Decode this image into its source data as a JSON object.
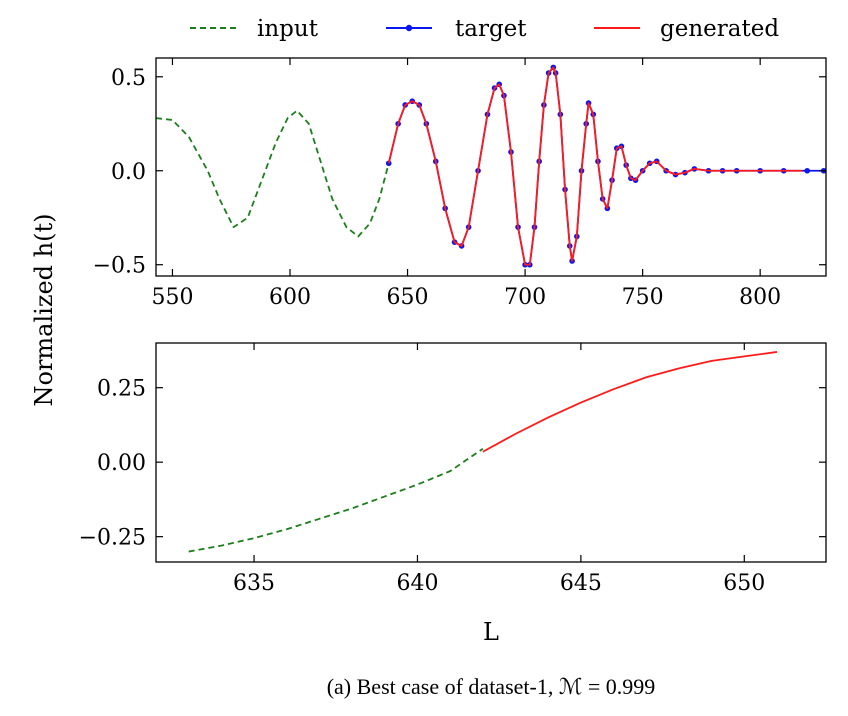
{
  "caption": "(a) Best case of dataset-1, ℳ = 0.999",
  "shared_ylabel": "Normalized h(t)",
  "colors": {
    "input": "#1a7f1a",
    "target": "#0b16f0",
    "generated": "#ff1a1a"
  },
  "legend": {
    "placement": "top-center",
    "items": [
      {
        "key": "input",
        "label": "input"
      },
      {
        "key": "target",
        "label": "target"
      },
      {
        "key": "generated",
        "label": "generated"
      }
    ]
  },
  "chart_data": [
    {
      "type": "line",
      "panel": "top",
      "title": "",
      "xlabel": "",
      "ylabel": "Normalized h(t)",
      "xlim": [
        543,
        828
      ],
      "ylim": [
        -0.56,
        0.6
      ],
      "xticks": [
        550,
        600,
        650,
        700,
        750,
        800
      ],
      "xtick_labels": [
        "550",
        "600",
        "650",
        "700",
        "750",
        "800"
      ],
      "yticks": [
        -0.5,
        0.0,
        0.5
      ],
      "ytick_labels": [
        "−0.5",
        "0.0",
        "0.5"
      ],
      "series": [
        {
          "name": "input",
          "style": "dashed",
          "x": [
            543,
            550,
            557,
            565,
            570,
            576,
            582,
            588,
            594,
            599,
            603,
            608,
            613,
            618,
            624,
            629,
            634,
            638,
            642
          ],
          "y": [
            0.28,
            0.27,
            0.18,
            0.0,
            -0.15,
            -0.3,
            -0.25,
            -0.05,
            0.15,
            0.28,
            0.32,
            0.25,
            0.05,
            -0.15,
            -0.3,
            -0.35,
            -0.28,
            -0.15,
            0.04
          ]
        },
        {
          "name": "target",
          "style": "solid-dots",
          "x": [
            642,
            646,
            649,
            652,
            655,
            658,
            662,
            666,
            670,
            673,
            676,
            680,
            684,
            687,
            689,
            691,
            694,
            697,
            700,
            702,
            704,
            706,
            708,
            710,
            712,
            713,
            715,
            717,
            719,
            720,
            722,
            724,
            726,
            727,
            729,
            731,
            733,
            735,
            737,
            739,
            741,
            743,
            745,
            747,
            750,
            753,
            756,
            760,
            764,
            768,
            772,
            778,
            784,
            790,
            800,
            810,
            820,
            827
          ],
          "y": [
            0.04,
            0.25,
            0.35,
            0.37,
            0.35,
            0.25,
            0.05,
            -0.2,
            -0.38,
            -0.4,
            -0.3,
            0.0,
            0.3,
            0.44,
            0.46,
            0.4,
            0.1,
            -0.3,
            -0.5,
            -0.5,
            -0.3,
            0.05,
            0.35,
            0.52,
            0.55,
            0.52,
            0.3,
            -0.1,
            -0.4,
            -0.48,
            -0.35,
            0.0,
            0.25,
            0.36,
            0.3,
            0.05,
            -0.15,
            -0.2,
            -0.05,
            0.12,
            0.13,
            0.03,
            -0.04,
            -0.05,
            0.0,
            0.04,
            0.05,
            0.0,
            -0.02,
            -0.01,
            0.01,
            0.0,
            0.0,
            0.0,
            0.0,
            0.0,
            0.0,
            0.0
          ]
        },
        {
          "name": "generated",
          "style": "solid",
          "x": [
            642,
            646,
            649,
            652,
            655,
            658,
            662,
            666,
            670,
            673,
            676,
            680,
            684,
            687,
            689,
            691,
            694,
            697,
            700,
            702,
            704,
            706,
            708,
            710,
            712,
            713,
            715,
            717,
            719,
            720,
            722,
            724,
            726,
            727,
            729,
            731,
            733,
            735,
            737,
            739,
            741,
            743,
            745,
            747,
            750,
            753,
            756,
            760,
            764,
            768,
            772,
            778,
            784,
            790,
            800,
            810,
            818
          ],
          "y": [
            0.04,
            0.25,
            0.35,
            0.37,
            0.35,
            0.25,
            0.05,
            -0.2,
            -0.38,
            -0.4,
            -0.3,
            0.0,
            0.3,
            0.44,
            0.46,
            0.4,
            0.1,
            -0.3,
            -0.5,
            -0.5,
            -0.3,
            0.05,
            0.35,
            0.52,
            0.55,
            0.52,
            0.3,
            -0.1,
            -0.4,
            -0.48,
            -0.35,
            0.0,
            0.25,
            0.36,
            0.3,
            0.05,
            -0.15,
            -0.2,
            -0.05,
            0.12,
            0.13,
            0.03,
            -0.04,
            -0.05,
            0.0,
            0.04,
            0.05,
            0.0,
            -0.02,
            -0.01,
            0.01,
            0.0,
            0.0,
            0.0,
            0.0,
            0.0,
            0.0
          ]
        }
      ]
    },
    {
      "type": "line",
      "panel": "bottom",
      "title": "",
      "xlabel": "L",
      "ylabel": "Normalized h(t)",
      "xlim": [
        632,
        652.5
      ],
      "ylim": [
        -0.335,
        0.4
      ],
      "xticks": [
        635,
        640,
        645,
        650
      ],
      "xtick_labels": [
        "635",
        "640",
        "645",
        "650"
      ],
      "yticks": [
        -0.25,
        0.0,
        0.25
      ],
      "ytick_labels": [
        "−0.25",
        "0.00",
        "0.25"
      ],
      "series": [
        {
          "name": "input",
          "style": "dashed",
          "x": [
            633,
            634,
            635,
            636,
            637,
            638,
            639,
            640,
            641,
            642
          ],
          "y": [
            -0.3,
            -0.28,
            -0.255,
            -0.225,
            -0.19,
            -0.155,
            -0.115,
            -0.075,
            -0.03,
            0.045
          ]
        },
        {
          "name": "generated",
          "style": "solid",
          "x": [
            642,
            643,
            644,
            645,
            646,
            647,
            648,
            649,
            650,
            651
          ],
          "y": [
            0.035,
            0.095,
            0.15,
            0.2,
            0.245,
            0.285,
            0.315,
            0.34,
            0.355,
            0.37
          ]
        }
      ]
    }
  ]
}
